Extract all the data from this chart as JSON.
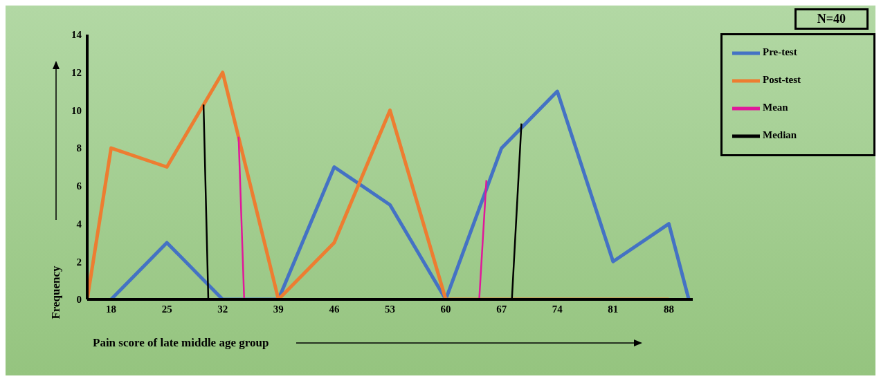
{
  "chart_data": {
    "type": "line",
    "xlabel": "Pain score of late middle age group",
    "ylabel": "Frequency",
    "annotations": [
      "N=40"
    ],
    "xlim": [
      15,
      91
    ],
    "xticks": [
      18,
      25,
      32,
      39,
      46,
      53,
      60,
      67,
      74,
      81,
      88
    ],
    "ylim": [
      0,
      14
    ],
    "yticks": [
      0,
      2,
      4,
      6,
      8,
      10,
      12,
      14
    ],
    "grid": false,
    "legend": "top right",
    "marker": "none",
    "line_style": "solid",
    "series": [
      {
        "name": "Pre-test",
        "color": "#4472c4",
        "x": [
          18,
          25,
          32,
          39,
          46,
          53,
          60,
          67,
          74,
          81,
          88,
          90.5
        ],
        "values": [
          0,
          3,
          0,
          0,
          7,
          5,
          0,
          8,
          11,
          2,
          4,
          0
        ]
      },
      {
        "name": "Post-test",
        "color": "#ed7d31",
        "x": [
          15,
          18,
          25,
          32,
          39,
          46,
          53,
          60,
          67,
          74,
          81,
          88
        ],
        "values": [
          0,
          8,
          7,
          12,
          0,
          3,
          10,
          0,
          0,
          0,
          0,
          0
        ]
      },
      {
        "name": "Mean",
        "color": "#e0189a",
        "x": [
          34.7,
          34,
          34.4,
          64.2,
          65.1
        ],
        "values": [
          0,
          8.6,
          null,
          0,
          6.3
        ]
      },
      {
        "name": "Median",
        "color": "#000000",
        "x": [
          30.2,
          29.6,
          50,
          68.3,
          69.5
        ],
        "values": [
          0,
          10.3,
          null,
          0,
          9.3
        ]
      }
    ]
  }
}
